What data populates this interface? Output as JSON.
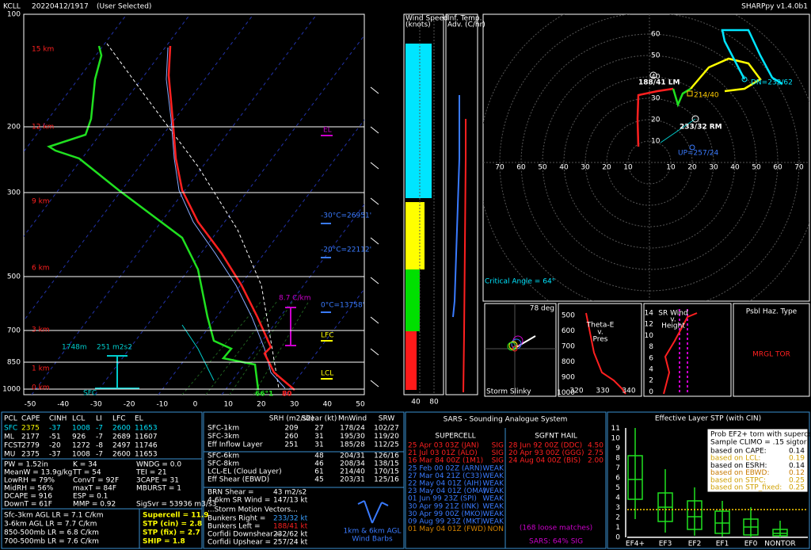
{
  "header": {
    "station": "KCLL",
    "datetime": "20220412/1917",
    "mode": "(User Selected)",
    "version": "SHARPpy v1.4.0b1"
  },
  "skewt": {
    "pressures": [
      "100",
      "200",
      "300",
      "500",
      "700",
      "850",
      "1000"
    ],
    "temps": [
      "-50",
      "-40",
      "-30",
      "-20",
      "-10",
      "0",
      "10",
      "20",
      "30",
      "40",
      "50"
    ],
    "heights": [
      "15 km",
      "12 km",
      "9 km",
      "6 km",
      "3 km",
      "1 km",
      "0 km"
    ],
    "levels": {
      "el": "EL",
      "lfc": "LFC",
      "lcl": "LCL"
    },
    "isotherms": [
      "-30°C=26951'",
      "-20°C=22112'",
      "0°C=13758'"
    ],
    "lapse": "8.7 C/km",
    "inflow_depth": "1748m",
    "inflow_srh": "251 m2s2",
    "sfc": "SFC",
    "dewpoint": "66°1",
    "temperature": "80"
  },
  "wind_panel": {
    "title": [
      "Wind Speed",
      "(knots)"
    ],
    "ticks": [
      "40",
      "80"
    ]
  },
  "adv_panel": {
    "title": [
      "Inf. Temp.",
      "Adv. (C/hr)"
    ]
  },
  "hodograph": {
    "rings": [
      "10",
      "20",
      "30",
      "40",
      "50",
      "60"
    ],
    "axis_left": [
      "70",
      "60",
      "50",
      "40",
      "30",
      "20",
      "10"
    ],
    "axis_right": [
      "10",
      "20",
      "30",
      "40",
      "50",
      "60",
      "70"
    ],
    "lm": "188/41 LM",
    "rm": "233/32 RM",
    "up": "UP=257/24",
    "dn": "DN=232/62",
    "mean": "214/40",
    "critical": "Critical Angle = 64°"
  },
  "slinky": {
    "angle": "78 deg",
    "title": "Storm Slinky"
  },
  "theta": {
    "title": [
      "Theta-E",
      "v.",
      "Pres"
    ],
    "pressures": [
      "500",
      "600",
      "700",
      "800",
      "900",
      "1000"
    ],
    "temps": [
      "320",
      "330",
      "340"
    ]
  },
  "srwind": {
    "title": [
      "SR Wind",
      "v.",
      "Height"
    ],
    "heights": [
      "14",
      "12",
      "10",
      "8",
      "6",
      "4",
      "2",
      "0"
    ]
  },
  "hazard": {
    "title": "Psbl Haz. Type",
    "value": "MRGL TOR"
  },
  "thermo": {
    "header": [
      "PCL",
      "CAPE",
      "CINH",
      "LCL",
      "LI",
      "LFC",
      "EL"
    ],
    "rows": [
      [
        "SFC",
        "2375",
        "-37",
        "1008",
        "-7",
        "2600",
        "11653"
      ],
      [
        "ML",
        "2177",
        "-51",
        "926",
        "-7",
        "2689",
        "11607"
      ],
      [
        "FCST",
        "2779",
        "-20",
        "1272",
        "-8",
        "2497",
        "11746"
      ],
      [
        "MU",
        "2375",
        "-37",
        "1008",
        "-7",
        "2600",
        "11653"
      ]
    ],
    "indices": [
      [
        "PW = 1.52in",
        "K = 34",
        "WNDG = 0.0"
      ],
      [
        "MeanW = 13.9g/kg",
        "TT = 54",
        "TEI = 21"
      ],
      [
        "LowRH = 79%",
        "ConvT = 92F",
        "3CAPE = 31"
      ],
      [
        "MidRH = 56%",
        "maxT = 84F",
        "MBURST = 1"
      ],
      [
        "DCAPE = 916",
        "ESP = 0.1"
      ],
      [
        "DownT = 61F",
        "MMP = 0.92",
        "SigSvr = 53936 m3/s3"
      ]
    ],
    "lapse": [
      "Sfc-3km AGL LR = 7.1 C/km",
      "3-6km AGL LR = 7.7 C/km",
      "850-500mb LR = 6.8 C/km",
      "700-500mb LR = 7.6 C/km"
    ],
    "params": [
      "Supercell = 11.9",
      "STP (cin) = 2.8",
      "STP (fix) = 2.7",
      "SHIP = 1.8"
    ]
  },
  "kinematics": {
    "header": [
      "SRH (m2/s2)",
      "Shear (kt)",
      "MnWind",
      "SRW"
    ],
    "rows": [
      [
        "SFC-1km",
        "209",
        "27",
        "178/24",
        "102/27"
      ],
      [
        "SFC-3km",
        "260",
        "31",
        "195/30",
        "119/20"
      ],
      [
        "Eff Inflow Layer",
        "251",
        "31",
        "185/28",
        "112/25"
      ],
      [
        "SFC-6km",
        "",
        "48",
        "204/31",
        "126/16"
      ],
      [
        "SFC-8km",
        "",
        "46",
        "208/34",
        "138/15"
      ],
      [
        "LCL-EL (Cloud Layer)",
        "",
        "61",
        "214/40",
        "170/15"
      ],
      [
        "Eff Shear (EBWD)",
        "",
        "45",
        "203/31",
        "125/16"
      ]
    ],
    "extra": [
      [
        "BRN Shear =",
        "43 m2/s2"
      ],
      [
        "4-6km SR Wind =",
        "147/13 kt"
      ]
    ],
    "motion_title": "...Storm Motion Vectors...",
    "motion": [
      [
        "Bunkers Right =",
        "233/32 kt"
      ],
      [
        "Bunkers Left =",
        "188/41 kt"
      ],
      [
        "Corfidi Downshear =",
        "232/62 kt"
      ],
      [
        "Corfidi Upshear =",
        "257/24 kt"
      ]
    ],
    "barbs": [
      "1km & 6km AGL",
      "Wind Barbs"
    ]
  },
  "sars": {
    "title": "SARS - Sounding Analogue System",
    "supercell_title": "SUPERCELL",
    "hail_title": "SGFNT HAIL",
    "supercell": [
      [
        "25 Apr 03 03Z (JAN)",
        "SIG"
      ],
      [
        "21 Jul 03 01Z (ALO)",
        "SIG"
      ],
      [
        "16 Mar 84 00Z (1M1)",
        "SIG"
      ],
      [
        "25 Feb 00 02Z (ARN)",
        "WEAK"
      ],
      [
        "27 Mar 04 21Z (C33)",
        "WEAK"
      ],
      [
        "22 May 04 01Z (AIH)",
        "WEAK"
      ],
      [
        "23 May 04 01Z (OMA)",
        "WEAK"
      ],
      [
        "01 Jun 99 23Z (SPI)",
        "WEAK"
      ],
      [
        "30 Apr 99 21Z (INK)",
        "WEAK"
      ],
      [
        "30 Apr 99 00Z (MKO)",
        "WEAK"
      ],
      [
        "09 Aug 99 23Z (MKT)",
        "WEAK"
      ],
      [
        "01 May 04 01Z (FWD)",
        "NON"
      ]
    ],
    "hail": [
      [
        "28 Jun 92 00Z (DDC)",
        "4.50"
      ],
      [
        "20 Apr 93 00Z (GGG)",
        "2.75"
      ],
      [
        "24 Aug 04 00Z (BIS)",
        "2.00"
      ]
    ],
    "matches": "(168 loose matches)",
    "summary": "SARS: 64% SIG"
  },
  "stp": {
    "title": "Effective Layer STP (with CIN)",
    "yticks": [
      "0",
      "1",
      "2",
      "3",
      "4",
      "5",
      "6",
      "7",
      "8",
      "9",
      "10",
      "11"
    ],
    "categories": [
      "EF4+",
      "EF3",
      "EF2",
      "EF1",
      "EF0",
      "NONTOR"
    ],
    "legend_title": [
      "Prob EF2+ torn with supercell",
      "Sample CLIMO = .15 sigtor"
    ],
    "legend": [
      [
        "based on CAPE:",
        "0.14"
      ],
      [
        "based on LCL:",
        "0.19"
      ],
      [
        "based on ESRH:",
        "0.14"
      ],
      [
        "based on EBWD:",
        "0.12"
      ],
      [
        "based on STPC:",
        "0.25"
      ],
      [
        "based on STP_fixed:",
        "0.25"
      ]
    ]
  }
}
